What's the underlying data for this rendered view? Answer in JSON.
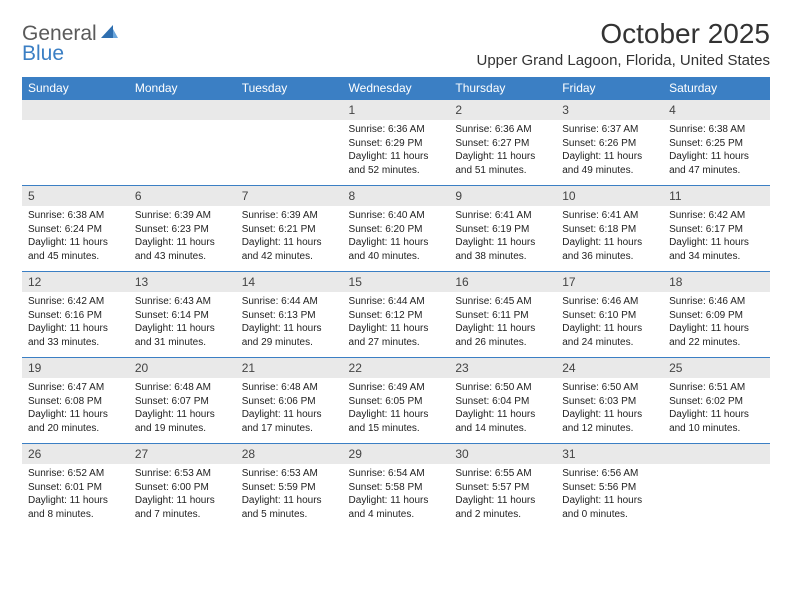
{
  "logo": {
    "part1": "General",
    "part2": "Blue"
  },
  "title": "October 2025",
  "location": "Upper Grand Lagoon, Florida, United States",
  "day_headers": [
    "Sunday",
    "Monday",
    "Tuesday",
    "Wednesday",
    "Thursday",
    "Friday",
    "Saturday"
  ],
  "colors": {
    "header_bg": "#3b7fc4",
    "header_text": "#ffffff",
    "daynum_bg": "#e9e9e9",
    "row_border": "#3b7fc4",
    "text": "#222222",
    "logo_gray": "#5a5a5a",
    "logo_blue": "#3b7fc4"
  },
  "weeks": [
    [
      null,
      null,
      null,
      {
        "n": "1",
        "sr": "Sunrise: 6:36 AM",
        "ss": "Sunset: 6:29 PM",
        "dl": "Daylight: 11 hours and 52 minutes."
      },
      {
        "n": "2",
        "sr": "Sunrise: 6:36 AM",
        "ss": "Sunset: 6:27 PM",
        "dl": "Daylight: 11 hours and 51 minutes."
      },
      {
        "n": "3",
        "sr": "Sunrise: 6:37 AM",
        "ss": "Sunset: 6:26 PM",
        "dl": "Daylight: 11 hours and 49 minutes."
      },
      {
        "n": "4",
        "sr": "Sunrise: 6:38 AM",
        "ss": "Sunset: 6:25 PM",
        "dl": "Daylight: 11 hours and 47 minutes."
      }
    ],
    [
      {
        "n": "5",
        "sr": "Sunrise: 6:38 AM",
        "ss": "Sunset: 6:24 PM",
        "dl": "Daylight: 11 hours and 45 minutes."
      },
      {
        "n": "6",
        "sr": "Sunrise: 6:39 AM",
        "ss": "Sunset: 6:23 PM",
        "dl": "Daylight: 11 hours and 43 minutes."
      },
      {
        "n": "7",
        "sr": "Sunrise: 6:39 AM",
        "ss": "Sunset: 6:21 PM",
        "dl": "Daylight: 11 hours and 42 minutes."
      },
      {
        "n": "8",
        "sr": "Sunrise: 6:40 AM",
        "ss": "Sunset: 6:20 PM",
        "dl": "Daylight: 11 hours and 40 minutes."
      },
      {
        "n": "9",
        "sr": "Sunrise: 6:41 AM",
        "ss": "Sunset: 6:19 PM",
        "dl": "Daylight: 11 hours and 38 minutes."
      },
      {
        "n": "10",
        "sr": "Sunrise: 6:41 AM",
        "ss": "Sunset: 6:18 PM",
        "dl": "Daylight: 11 hours and 36 minutes."
      },
      {
        "n": "11",
        "sr": "Sunrise: 6:42 AM",
        "ss": "Sunset: 6:17 PM",
        "dl": "Daylight: 11 hours and 34 minutes."
      }
    ],
    [
      {
        "n": "12",
        "sr": "Sunrise: 6:42 AM",
        "ss": "Sunset: 6:16 PM",
        "dl": "Daylight: 11 hours and 33 minutes."
      },
      {
        "n": "13",
        "sr": "Sunrise: 6:43 AM",
        "ss": "Sunset: 6:14 PM",
        "dl": "Daylight: 11 hours and 31 minutes."
      },
      {
        "n": "14",
        "sr": "Sunrise: 6:44 AM",
        "ss": "Sunset: 6:13 PM",
        "dl": "Daylight: 11 hours and 29 minutes."
      },
      {
        "n": "15",
        "sr": "Sunrise: 6:44 AM",
        "ss": "Sunset: 6:12 PM",
        "dl": "Daylight: 11 hours and 27 minutes."
      },
      {
        "n": "16",
        "sr": "Sunrise: 6:45 AM",
        "ss": "Sunset: 6:11 PM",
        "dl": "Daylight: 11 hours and 26 minutes."
      },
      {
        "n": "17",
        "sr": "Sunrise: 6:46 AM",
        "ss": "Sunset: 6:10 PM",
        "dl": "Daylight: 11 hours and 24 minutes."
      },
      {
        "n": "18",
        "sr": "Sunrise: 6:46 AM",
        "ss": "Sunset: 6:09 PM",
        "dl": "Daylight: 11 hours and 22 minutes."
      }
    ],
    [
      {
        "n": "19",
        "sr": "Sunrise: 6:47 AM",
        "ss": "Sunset: 6:08 PM",
        "dl": "Daylight: 11 hours and 20 minutes."
      },
      {
        "n": "20",
        "sr": "Sunrise: 6:48 AM",
        "ss": "Sunset: 6:07 PM",
        "dl": "Daylight: 11 hours and 19 minutes."
      },
      {
        "n": "21",
        "sr": "Sunrise: 6:48 AM",
        "ss": "Sunset: 6:06 PM",
        "dl": "Daylight: 11 hours and 17 minutes."
      },
      {
        "n": "22",
        "sr": "Sunrise: 6:49 AM",
        "ss": "Sunset: 6:05 PM",
        "dl": "Daylight: 11 hours and 15 minutes."
      },
      {
        "n": "23",
        "sr": "Sunrise: 6:50 AM",
        "ss": "Sunset: 6:04 PM",
        "dl": "Daylight: 11 hours and 14 minutes."
      },
      {
        "n": "24",
        "sr": "Sunrise: 6:50 AM",
        "ss": "Sunset: 6:03 PM",
        "dl": "Daylight: 11 hours and 12 minutes."
      },
      {
        "n": "25",
        "sr": "Sunrise: 6:51 AM",
        "ss": "Sunset: 6:02 PM",
        "dl": "Daylight: 11 hours and 10 minutes."
      }
    ],
    [
      {
        "n": "26",
        "sr": "Sunrise: 6:52 AM",
        "ss": "Sunset: 6:01 PM",
        "dl": "Daylight: 11 hours and 8 minutes."
      },
      {
        "n": "27",
        "sr": "Sunrise: 6:53 AM",
        "ss": "Sunset: 6:00 PM",
        "dl": "Daylight: 11 hours and 7 minutes."
      },
      {
        "n": "28",
        "sr": "Sunrise: 6:53 AM",
        "ss": "Sunset: 5:59 PM",
        "dl": "Daylight: 11 hours and 5 minutes."
      },
      {
        "n": "29",
        "sr": "Sunrise: 6:54 AM",
        "ss": "Sunset: 5:58 PM",
        "dl": "Daylight: 11 hours and 4 minutes."
      },
      {
        "n": "30",
        "sr": "Sunrise: 6:55 AM",
        "ss": "Sunset: 5:57 PM",
        "dl": "Daylight: 11 hours and 2 minutes."
      },
      {
        "n": "31",
        "sr": "Sunrise: 6:56 AM",
        "ss": "Sunset: 5:56 PM",
        "dl": "Daylight: 11 hours and 0 minutes."
      },
      null
    ]
  ]
}
